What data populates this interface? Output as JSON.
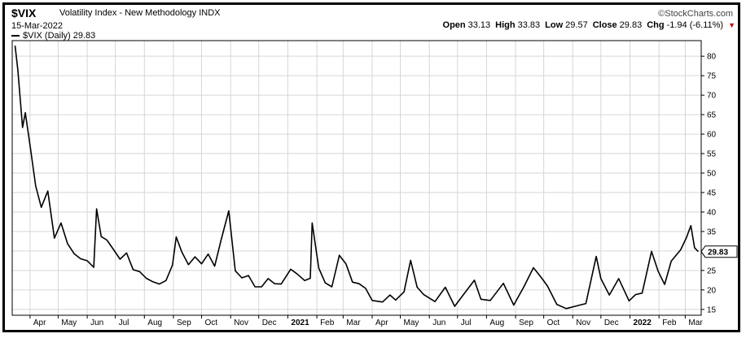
{
  "header": {
    "symbol": "$VIX",
    "name": "Volatility Index - New Methodology",
    "exchange": "INDX",
    "date": "15-Mar-2022",
    "brand": "©StockCharts.com",
    "open_label": "Open",
    "open": "33.13",
    "high_label": "High",
    "high": "33.83",
    "low_label": "Low",
    "low": "29.57",
    "close_label": "Close",
    "close": "29.83",
    "chg_label": "Chg",
    "chg": "-1.94 (-6.11%)",
    "down_color": "#cc0000"
  },
  "legend": {
    "label": "$VIX (Daily) 29.83"
  },
  "chart_data": {
    "type": "line",
    "series": [
      {
        "name": "$VIX (Daily)",
        "x": [
          "2020-03-16",
          "2020-03-19",
          "2020-03-24",
          "2020-03-27",
          "2020-04-01",
          "2020-04-07",
          "2020-04-13",
          "2020-04-20",
          "2020-04-27",
          "2020-05-04",
          "2020-05-11",
          "2020-05-18",
          "2020-05-25",
          "2020-06-01",
          "2020-06-08",
          "2020-06-11",
          "2020-06-16",
          "2020-06-22",
          "2020-06-29",
          "2020-07-06",
          "2020-07-13",
          "2020-07-20",
          "2020-07-27",
          "2020-08-03",
          "2020-08-10",
          "2020-08-17",
          "2020-08-24",
          "2020-08-31",
          "2020-09-04",
          "2020-09-10",
          "2020-09-17",
          "2020-09-24",
          "2020-10-01",
          "2020-10-08",
          "2020-10-15",
          "2020-10-22",
          "2020-10-30",
          "2020-11-06",
          "2020-11-13",
          "2020-11-20",
          "2020-11-27",
          "2020-12-04",
          "2020-12-11",
          "2020-12-18",
          "2020-12-25",
          "2021-01-04",
          "2021-01-11",
          "2021-01-19",
          "2021-01-25",
          "2021-01-27",
          "2021-02-03",
          "2021-02-10",
          "2021-02-17",
          "2021-02-25",
          "2021-03-04",
          "2021-03-11",
          "2021-03-18",
          "2021-03-25",
          "2021-04-01",
          "2021-04-12",
          "2021-04-20",
          "2021-04-26",
          "2021-05-05",
          "2021-05-12",
          "2021-05-19",
          "2021-05-26",
          "2021-06-07",
          "2021-06-18",
          "2021-06-28",
          "2021-07-08",
          "2021-07-19",
          "2021-07-26",
          "2021-08-05",
          "2021-08-19",
          "2021-08-30",
          "2021-09-10",
          "2021-09-20",
          "2021-09-28",
          "2021-10-05",
          "2021-10-15",
          "2021-10-25",
          "2021-11-05",
          "2021-11-15",
          "2021-11-26",
          "2021-12-01",
          "2021-12-10",
          "2021-12-20",
          "2021-12-31",
          "2022-01-07",
          "2022-01-14",
          "2022-01-24",
          "2022-01-31",
          "2022-02-07",
          "2022-02-14",
          "2022-02-24",
          "2022-03-02",
          "2022-03-07",
          "2022-03-11",
          "2022-03-15"
        ],
        "values": [
          82.7,
          76.5,
          61.7,
          65.5,
          57.1,
          46.7,
          41.2,
          45.4,
          33.3,
          37.2,
          31.9,
          29.3,
          28.0,
          27.5,
          25.8,
          40.8,
          33.7,
          32.8,
          30.4,
          27.9,
          29.5,
          25.2,
          24.7,
          23.0,
          22.1,
          21.5,
          22.4,
          26.4,
          33.6,
          29.7,
          26.5,
          28.5,
          26.7,
          29.2,
          26.1,
          33.0,
          40.3,
          24.9,
          23.1,
          23.7,
          20.8,
          20.8,
          22.9,
          21.6,
          21.5,
          25.3,
          24.1,
          22.4,
          23.0,
          37.2,
          25.6,
          21.8,
          20.8,
          28.9,
          26.7,
          22.0,
          21.6,
          20.4,
          17.3,
          16.9,
          18.7,
          17.4,
          19.5,
          27.6,
          20.7,
          18.8,
          17.0,
          20.7,
          15.8,
          19.0,
          22.5,
          17.6,
          17.3,
          21.7,
          16.1,
          20.9,
          25.7,
          23.3,
          21.0,
          16.3,
          15.2,
          15.9,
          16.5,
          28.6,
          22.9,
          18.7,
          22.9,
          17.2,
          18.8,
          19.2,
          29.9,
          24.8,
          21.4,
          27.4,
          30.3,
          33.3,
          36.5,
          30.8,
          29.83
        ]
      }
    ],
    "x_tick_labels": [
      "Apr",
      "May",
      "Jun",
      "Jul",
      "Aug",
      "Sep",
      "Oct",
      "Nov",
      "Dec",
      "2021",
      "Feb",
      "Mar",
      "Apr",
      "May",
      "Jun",
      "Jul",
      "Aug",
      "Sep",
      "Oct",
      "Nov",
      "Dec",
      "2022",
      "Feb",
      "Mar"
    ],
    "x_tick_dates": [
      "2020-04-01",
      "2020-05-01",
      "2020-06-01",
      "2020-07-01",
      "2020-08-01",
      "2020-09-01",
      "2020-10-01",
      "2020-11-01",
      "2020-12-01",
      "2021-01-01",
      "2021-02-01",
      "2021-03-01",
      "2021-04-01",
      "2021-05-01",
      "2021-06-01",
      "2021-07-01",
      "2021-08-01",
      "2021-09-01",
      "2021-10-01",
      "2021-11-01",
      "2021-12-01",
      "2022-01-01",
      "2022-02-01",
      "2022-03-01"
    ],
    "bold_tick_labels": [
      "2021",
      "2022"
    ],
    "y_ticks": [
      15,
      20,
      25,
      30,
      35,
      40,
      45,
      50,
      55,
      60,
      65,
      70,
      75,
      80
    ],
    "ylim": [
      13.5,
      84
    ],
    "xlim": [
      "2020-03-13",
      "2022-03-18"
    ],
    "last_value_label": "29.83",
    "grid": true,
    "y_axis_side": "right",
    "line_color": "#000000",
    "grid_color": "#d6d6d6"
  }
}
